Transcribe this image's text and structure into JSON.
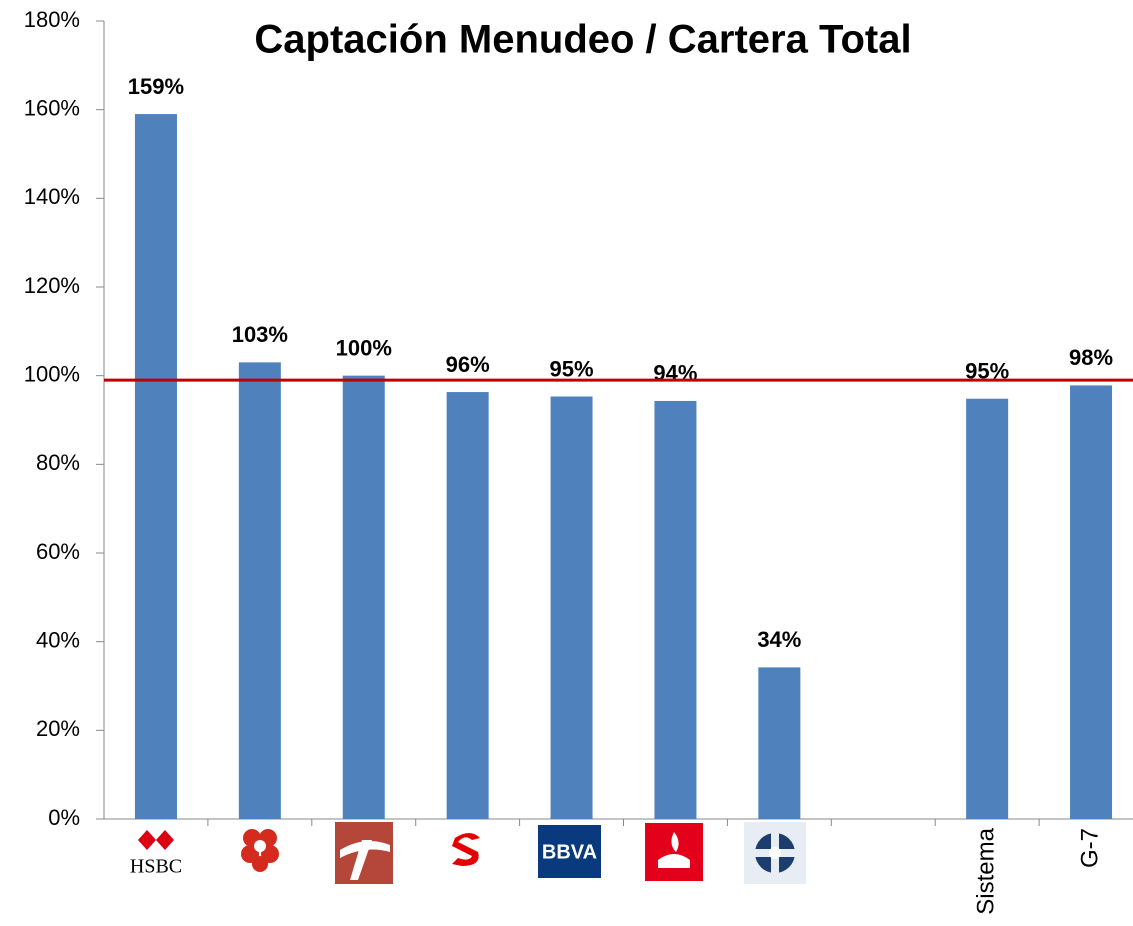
{
  "chart_data": {
    "type": "bar",
    "title": "Captación Menudeo / Cartera Total",
    "categories": [
      "HSBC",
      null,
      null,
      null,
      "BBVA",
      null,
      null,
      null,
      "Sistema",
      "G-7"
    ],
    "values": [
      159,
      103,
      100,
      96.3,
      95.3,
      94.3,
      34.2,
      null,
      94.8,
      97.8
    ],
    "value_labels": [
      "159%",
      "103%",
      "100%",
      "96%",
      "95%",
      "94%",
      "34%",
      null,
      "95%",
      "98%"
    ],
    "color": "#4f81bd",
    "ylim": [
      0,
      180
    ],
    "yticks": [
      {
        "value": 0,
        "label": "0%"
      },
      {
        "value": 20,
        "label": "20%"
      },
      {
        "value": 40,
        "label": "40%"
      },
      {
        "value": 60,
        "label": "60%"
      },
      {
        "value": 80,
        "label": "80%"
      },
      {
        "value": 100,
        "label": "100%"
      },
      {
        "value": 120,
        "label": "120%"
      },
      {
        "value": 140,
        "label": "140%"
      },
      {
        "value": 160,
        "label": "160%"
      },
      {
        "value": 180,
        "label": "180%"
      }
    ],
    "reference_line": {
      "value": 99,
      "color": "#c00000"
    }
  }
}
